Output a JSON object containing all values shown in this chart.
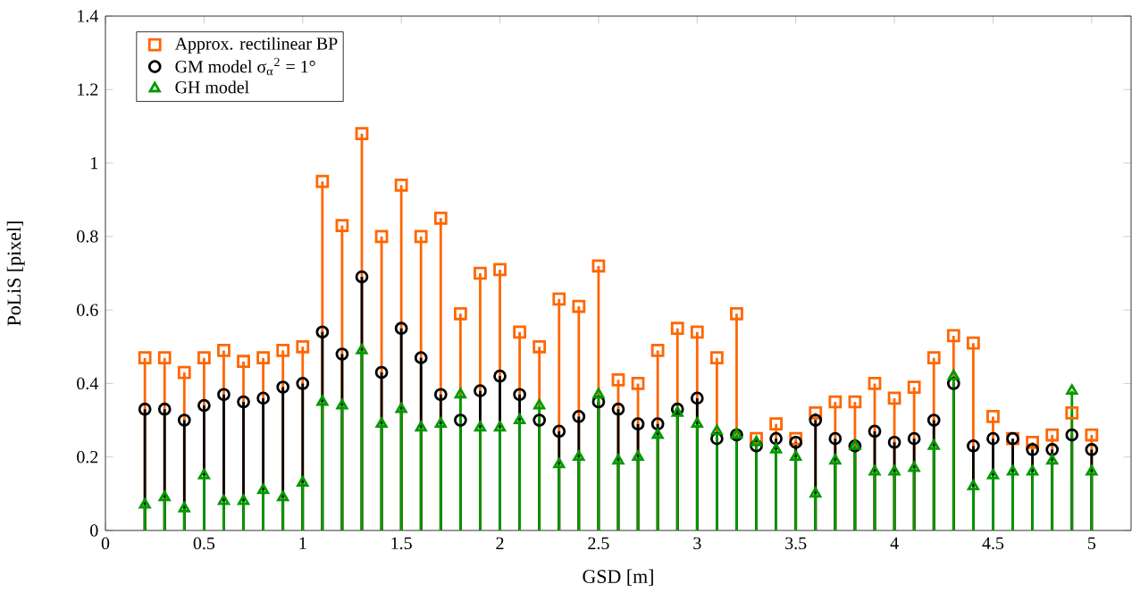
{
  "chart_data": {
    "type": "lollipop",
    "xlabel": "GSD [m]",
    "ylabel": "PoLiS [pixel]",
    "x": [
      0.2,
      0.3,
      0.4,
      0.5,
      0.6,
      0.7,
      0.8,
      0.9,
      1.0,
      1.1,
      1.2,
      1.3,
      1.4,
      1.5,
      1.6,
      1.7,
      1.8,
      1.9,
      2.0,
      2.1,
      2.2,
      2.3,
      2.4,
      2.5,
      2.6,
      2.7,
      2.8,
      2.9,
      3.0,
      3.1,
      3.2,
      3.3,
      3.4,
      3.5,
      3.6,
      3.7,
      3.8,
      3.9,
      4.0,
      4.1,
      4.2,
      4.3,
      4.4,
      4.5,
      4.6,
      4.7,
      4.8,
      4.9,
      5.0
    ],
    "series": [
      {
        "name": "Approx. rectilinear BP",
        "color": "#ff6600",
        "marker": "square",
        "values": [
          0.47,
          0.47,
          0.43,
          0.47,
          0.49,
          0.46,
          0.47,
          0.49,
          0.5,
          0.95,
          0.83,
          1.08,
          0.8,
          0.94,
          0.8,
          0.85,
          0.59,
          0.7,
          0.71,
          0.54,
          0.5,
          0.63,
          0.61,
          0.72,
          0.41,
          0.4,
          0.49,
          0.55,
          0.54,
          0.47,
          0.59,
          0.25,
          0.29,
          0.25,
          0.32,
          0.35,
          0.35,
          0.4,
          0.36,
          0.39,
          0.47,
          0.53,
          0.51,
          0.31,
          0.25,
          0.24,
          0.26,
          0.32,
          0.26
        ]
      },
      {
        "name": "GM model σ$_{α}$$^{2}$ = 1°",
        "color": "#000000",
        "marker": "circle",
        "values": [
          0.33,
          0.33,
          0.3,
          0.34,
          0.37,
          0.35,
          0.36,
          0.39,
          0.4,
          0.54,
          0.48,
          0.69,
          0.43,
          0.55,
          0.47,
          0.37,
          0.3,
          0.38,
          0.42,
          0.37,
          0.3,
          0.27,
          0.31,
          0.35,
          0.33,
          0.29,
          0.29,
          0.33,
          0.36,
          0.25,
          0.26,
          0.23,
          0.25,
          0.24,
          0.3,
          0.25,
          0.23,
          0.27,
          0.24,
          0.25,
          0.3,
          0.4,
          0.23,
          0.25,
          0.25,
          0.22,
          0.22,
          0.26,
          0.22
        ]
      },
      {
        "name": "GH model",
        "color": "#009900",
        "marker": "triangle",
        "values": [
          0.07,
          0.09,
          0.06,
          0.15,
          0.08,
          0.08,
          0.11,
          0.09,
          0.13,
          0.35,
          0.34,
          0.49,
          0.29,
          0.33,
          0.28,
          0.29,
          0.37,
          0.28,
          0.28,
          0.3,
          0.34,
          0.18,
          0.2,
          0.37,
          0.19,
          0.2,
          0.26,
          0.32,
          0.29,
          0.27,
          0.26,
          0.24,
          0.22,
          0.2,
          0.1,
          0.19,
          0.23,
          0.16,
          0.16,
          0.17,
          0.23,
          0.42,
          0.12,
          0.15,
          0.16,
          0.16,
          0.19,
          0.38,
          0.16
        ]
      }
    ],
    "xlim": [
      0,
      5.2
    ],
    "ylim": [
      0,
      1.4
    ],
    "xticks": [
      0,
      0.5,
      1,
      1.5,
      2,
      2.5,
      3,
      3.5,
      4,
      4.5,
      5
    ],
    "yticks": [
      0,
      0.2,
      0.4,
      0.6,
      0.8,
      1,
      1.2,
      1.4
    ],
    "legend": "top left",
    "grid": false
  }
}
